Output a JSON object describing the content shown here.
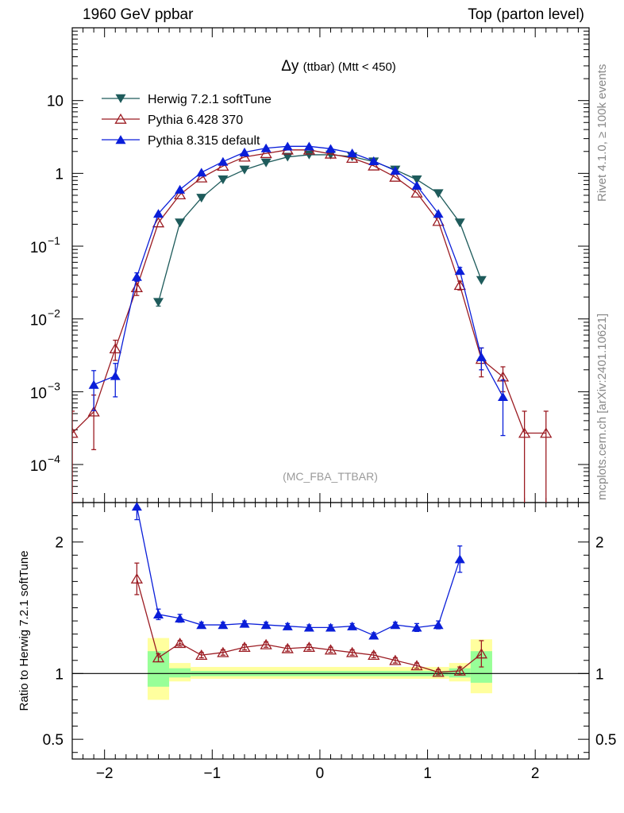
{
  "header": {
    "left": "1960 GeV ppbar",
    "right": "Top (parton level)"
  },
  "side_labels": {
    "rivet": "Rivet 4.1.0, ≥ 100k events",
    "source": "mcplots.cern.ch [arXiv:2401.10621]"
  },
  "chart_data": {
    "type": "line",
    "title_main": "Δy",
    "title_sub": "(ttbar) (Mtt < 450)",
    "watermark": "(MC_FBA_TTBAR)",
    "x": [
      -2.3,
      -2.1,
      -1.9,
      -1.7,
      -1.5,
      -1.3,
      -1.1,
      -0.9,
      -0.7,
      -0.5,
      -0.3,
      -0.1,
      0.1,
      0.3,
      0.5,
      0.7,
      0.9,
      1.1,
      1.3,
      1.5,
      1.7,
      1.9,
      2.1,
      2.3
    ],
    "xlim": [
      -2.3,
      2.5
    ],
    "xticks": [
      -2,
      -1,
      0,
      1,
      2
    ],
    "xtick_labels": [
      "−2",
      "−1",
      "0",
      "1",
      "2"
    ],
    "main_ylim": [
      3e-05,
      100
    ],
    "main_yticks": [
      {
        "base": "10",
        "exp": "−4",
        "value": 0.0001
      },
      {
        "base": "10",
        "exp": "−3",
        "value": 0.001
      },
      {
        "base": "10",
        "exp": "−2",
        "value": 0.01
      },
      {
        "base": "10",
        "exp": "−1",
        "value": 0.1
      },
      {
        "base": "1",
        "exp": "",
        "value": 1
      },
      {
        "base": "10",
        "exp": "",
        "value": 10
      }
    ],
    "ratio_ylabel": "Ratio to Herwig 7.2.1 softTune",
    "ratio_ylim": [
      0.35,
      2.3
    ],
    "ratio_yticks": [
      0.5,
      1,
      2
    ],
    "ratio_ytick_labels": [
      "0.5",
      "1",
      "2"
    ],
    "series": [
      {
        "name": "Herwig 7.2.1 softTune",
        "color": "#1e5b5b",
        "marker": "triangle-down-filled",
        "values": [
          null,
          null,
          null,
          null,
          0.017,
          0.21,
          0.46,
          0.82,
          1.12,
          1.4,
          1.68,
          1.8,
          1.8,
          1.7,
          1.45,
          1.12,
          0.82,
          0.53,
          0.21,
          0.034,
          null,
          null,
          null,
          null
        ],
        "errors": [
          null,
          null,
          null,
          null,
          0.002,
          null,
          null,
          null,
          null,
          null,
          null,
          null,
          null,
          null,
          null,
          null,
          null,
          null,
          null,
          null,
          null,
          null,
          null,
          null
        ],
        "ratio": [
          null,
          null,
          null,
          null,
          1,
          1,
          1,
          1,
          1,
          1,
          1,
          1,
          1,
          1,
          1,
          1,
          1,
          1,
          1,
          1,
          null,
          null,
          null,
          null
        ]
      },
      {
        "name": "Pythia 6.428 370",
        "color": "#9b1b22",
        "marker": "triangle-up-open",
        "values": [
          0.00027,
          0.00053,
          0.0039,
          0.027,
          0.21,
          0.51,
          0.87,
          1.26,
          1.68,
          1.88,
          2.1,
          2.1,
          1.85,
          1.62,
          1.27,
          0.89,
          0.54,
          0.22,
          0.029,
          0.0028,
          0.0016,
          0.00027,
          0.00027,
          null
        ],
        "errors": [
          0.00027,
          0.00037,
          0.0012,
          0.006,
          null,
          null,
          null,
          null,
          null,
          null,
          null,
          null,
          null,
          null,
          null,
          null,
          null,
          null,
          0.004,
          0.0012,
          0.0006,
          0.00027,
          0.00027,
          null
        ],
        "ratio": [
          null,
          null,
          null,
          1.72,
          1.12,
          1.23,
          1.14,
          1.16,
          1.2,
          1.22,
          1.19,
          1.2,
          1.18,
          1.16,
          1.14,
          1.1,
          1.06,
          1.01,
          1.02,
          1.15,
          null,
          null,
          null,
          null
        ],
        "ratio_errors": [
          null,
          null,
          null,
          0.12,
          0.03,
          0.02,
          0.02,
          0.02,
          0.02,
          0.02,
          0.02,
          0.02,
          0.02,
          0.02,
          0.02,
          0.02,
          0.02,
          0.02,
          0.03,
          0.1,
          null,
          null,
          null,
          null
        ]
      },
      {
        "name": "Pythia 8.315 default",
        "color": "#0a1ed9",
        "marker": "triangle-up-filled",
        "values": [
          null,
          0.00125,
          0.00165,
          0.038,
          0.28,
          0.6,
          1.03,
          1.45,
          1.95,
          2.22,
          2.35,
          2.35,
          2.18,
          1.9,
          1.48,
          1.09,
          0.68,
          0.28,
          0.046,
          0.003,
          0.00085,
          null,
          null,
          null
        ],
        "errors": [
          null,
          0.0007,
          0.0008,
          0.005,
          null,
          null,
          null,
          null,
          null,
          null,
          null,
          null,
          null,
          null,
          null,
          null,
          null,
          null,
          0.005,
          0.001,
          0.0006,
          null,
          null,
          null
        ],
        "ratio": [
          null,
          null,
          null,
          2.27,
          1.45,
          1.42,
          1.37,
          1.37,
          1.38,
          1.37,
          1.36,
          1.35,
          1.35,
          1.36,
          1.29,
          1.37,
          1.35,
          1.37,
          1.87,
          null,
          null,
          null,
          null,
          null
        ],
        "ratio_errors": [
          null,
          null,
          null,
          0.1,
          0.04,
          0.03,
          0.02,
          0.02,
          0.02,
          0.02,
          0.02,
          0.02,
          0.02,
          0.02,
          0.02,
          0.02,
          0.03,
          0.03,
          0.1,
          null,
          null,
          null,
          null,
          null
        ]
      }
    ],
    "ratio_bands": {
      "bins": [
        [
          -1.6,
          -1.4
        ],
        [
          -1.4,
          -1.2
        ],
        [
          -1.2,
          1.2
        ],
        [
          1.2,
          1.4
        ],
        [
          1.4,
          1.6
        ]
      ],
      "yellow": [
        [
          0.8,
          1.27
        ],
        [
          0.94,
          1.08
        ],
        [
          0.96,
          1.05
        ],
        [
          0.94,
          1.08
        ],
        [
          0.85,
          1.26
        ]
      ],
      "green": [
        [
          0.9,
          1.17
        ],
        [
          0.97,
          1.04
        ],
        [
          0.98,
          1.02
        ],
        [
          0.97,
          1.04
        ],
        [
          0.93,
          1.17
        ]
      ],
      "yellow_color": "#ffff9e",
      "green_color": "#98ff98"
    }
  }
}
